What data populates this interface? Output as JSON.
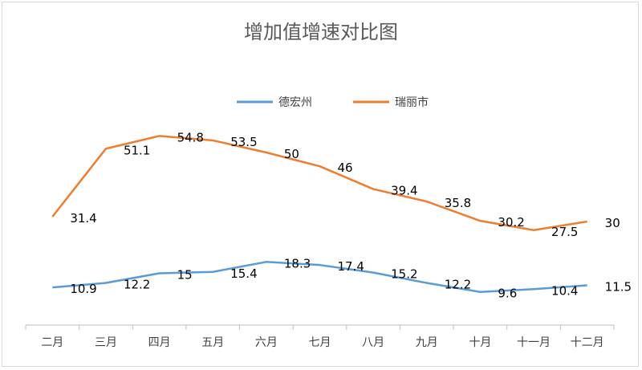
{
  "chart_data": {
    "type": "line",
    "title": "增加值增速对比图",
    "categories": [
      "二月",
      "三月",
      "四月",
      "五月",
      "六月",
      "七月",
      "八月",
      "九月",
      "十月",
      "十一月",
      "十二月"
    ],
    "series": [
      {
        "name": "德宏州",
        "color": "#5B9BD5",
        "values": [
          10.9,
          12.2,
          15,
          15.4,
          18.3,
          17.4,
          15.2,
          12.2,
          9.6,
          10.4,
          11.5
        ]
      },
      {
        "name": "瑞丽市",
        "color": "#ED7D31",
        "values": [
          31.4,
          51.1,
          54.8,
          53.5,
          50,
          46,
          39.4,
          35.8,
          30.2,
          27.5,
          30
        ]
      }
    ],
    "ylim": [
      0,
      60
    ],
    "grid": false,
    "legend": "top",
    "data_labels": true
  }
}
